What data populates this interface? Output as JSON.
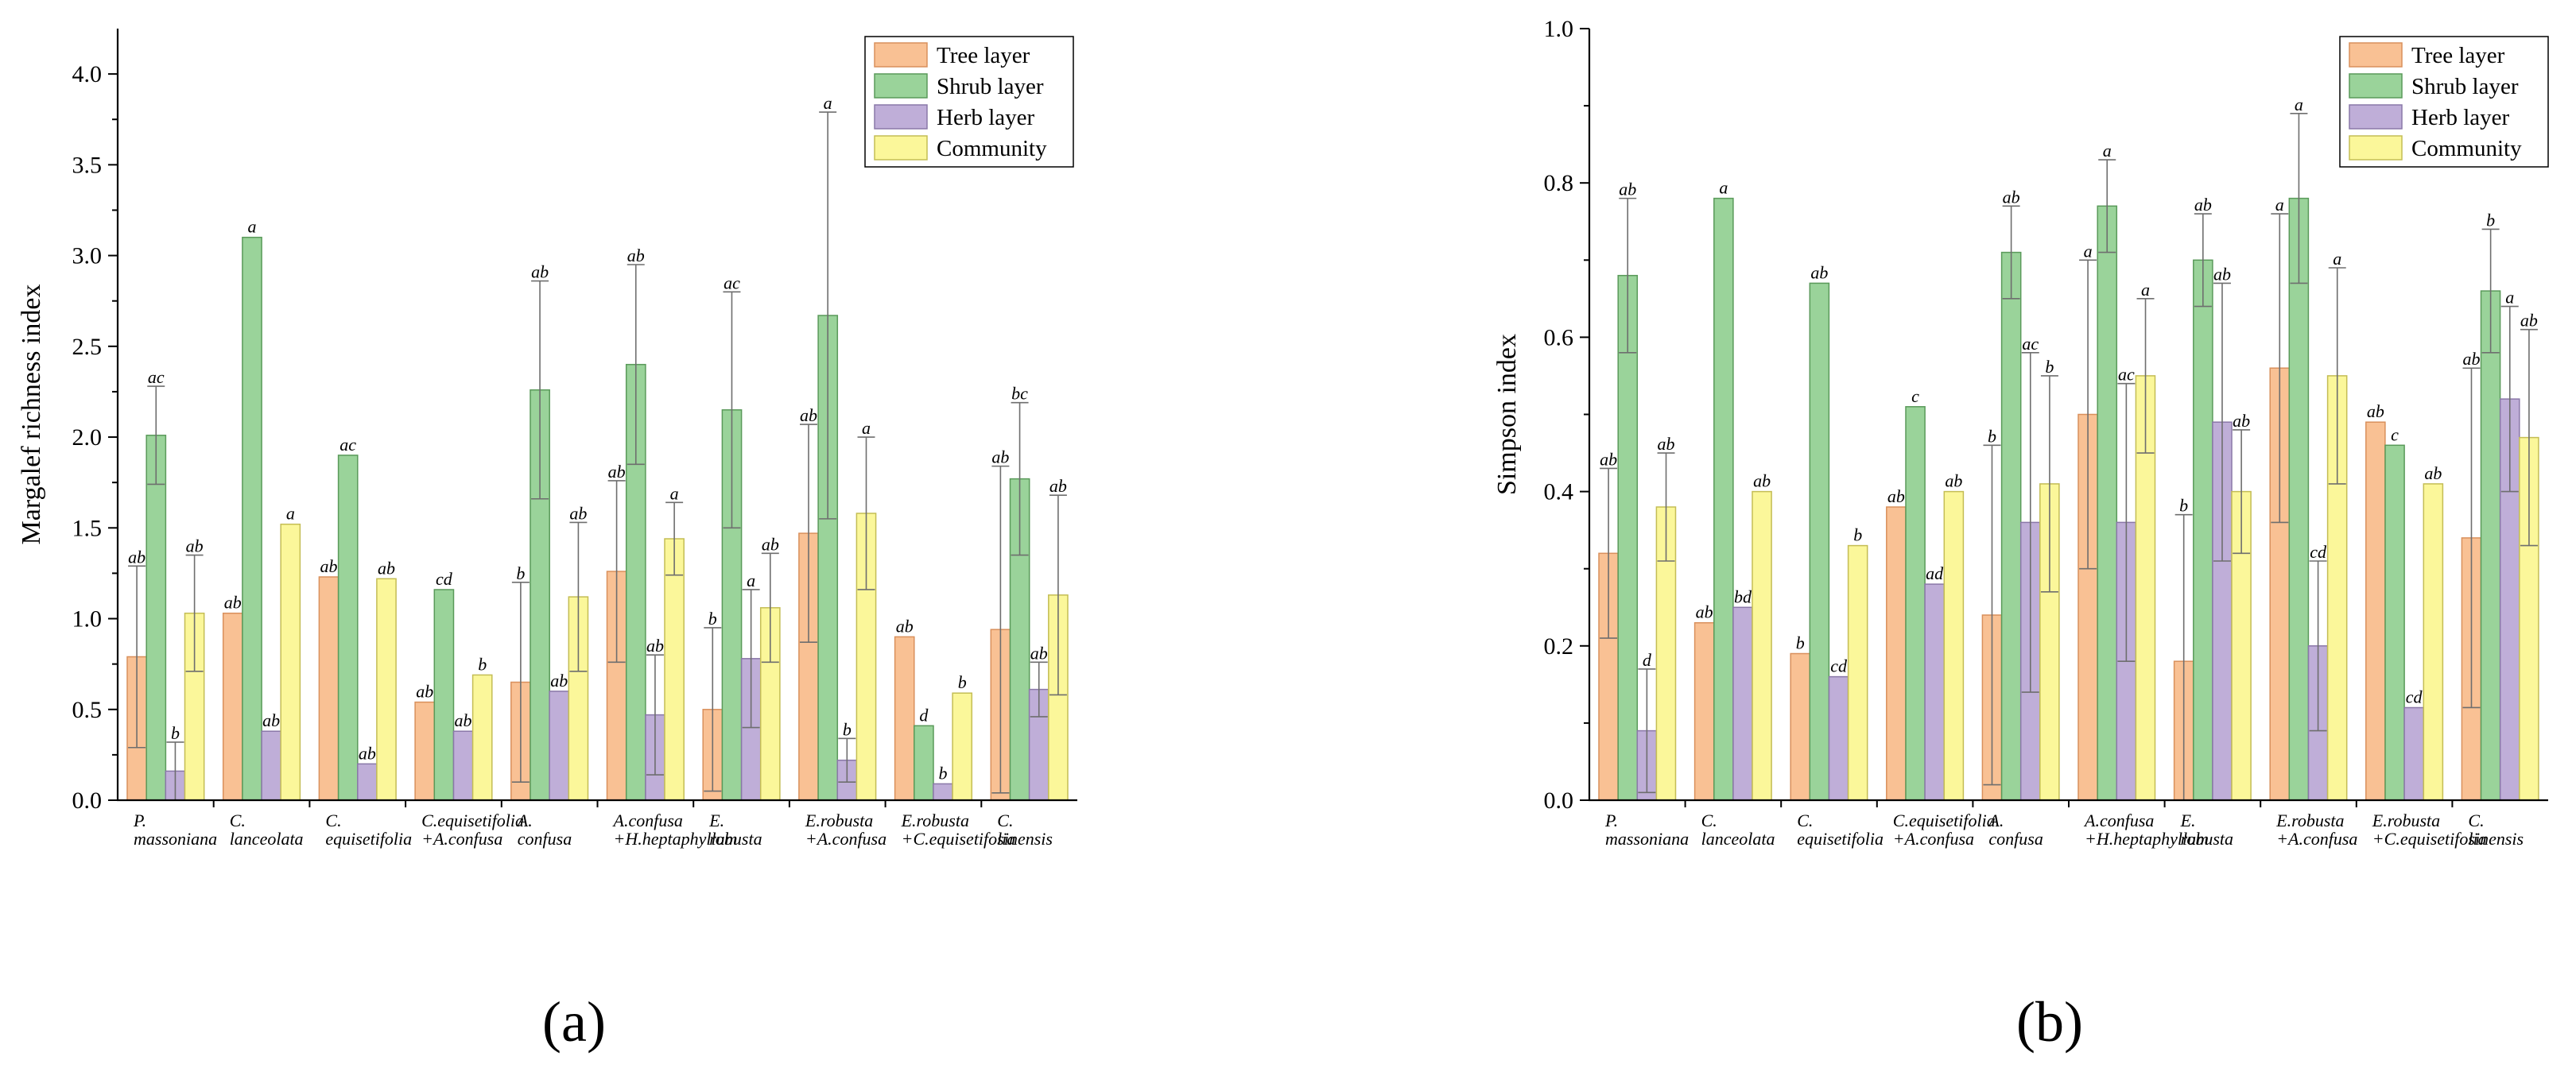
{
  "colors": {
    "tree": "#f9c194",
    "tree_stroke": "#d9905c",
    "shrub": "#9ad39a",
    "shrub_stroke": "#5a9a5a",
    "herb": "#bfaed8",
    "herb_stroke": "#8a78a8",
    "community": "#fbf79a",
    "community_stroke": "#c4bd55"
  },
  "legend": [
    "Tree layer",
    "Shrub layer",
    "Herb layer",
    "Community"
  ],
  "chart_data": [
    {
      "type": "bar",
      "panel_label": "(a)",
      "ylabel": "Margalef richness index",
      "xlabel": "",
      "ylim": [
        0,
        4.25
      ],
      "yticks": [
        "0.0",
        "0.5",
        "1.0",
        "1.5",
        "2.0",
        "2.5",
        "3.0",
        "3.5",
        "4.0"
      ],
      "categories": [
        [
          "P.",
          "massoniana"
        ],
        [
          "C.",
          "lanceolata"
        ],
        [
          "C.",
          "equisetifolia"
        ],
        [
          "C.equisetifolia",
          "+A.confusa"
        ],
        [
          "A.",
          "confusa"
        ],
        [
          "A.confusa",
          "+H.heptaphyllum"
        ],
        [
          "E.",
          "robusta"
        ],
        [
          "E.robusta",
          "+A.confusa"
        ],
        [
          "E.robusta",
          "+C.equisetifolia"
        ],
        [
          "C.",
          "sinensis"
        ]
      ],
      "series": [
        {
          "name": "Tree layer",
          "values": [
            0.79,
            1.03,
            1.23,
            0.54,
            0.65,
            1.26,
            0.5,
            1.47,
            0.9,
            0.94
          ],
          "errors": [
            0.5,
            0.0,
            0.0,
            0.0,
            0.55,
            0.5,
            0.45,
            0.6,
            0.0,
            0.9
          ],
          "labels": [
            "ab",
            "ab",
            "ab",
            "ab",
            "b",
            "ab",
            "b",
            "ab",
            "ab",
            "ab"
          ]
        },
        {
          "name": "Shrub layer",
          "values": [
            2.01,
            3.1,
            1.9,
            1.16,
            2.26,
            2.4,
            2.15,
            2.67,
            0.41,
            1.77
          ],
          "errors": [
            0.27,
            0.0,
            0.0,
            0.0,
            0.6,
            0.55,
            0.65,
            1.12,
            0.0,
            0.42
          ],
          "labels": [
            "ac",
            "a",
            "ac",
            "cd",
            "ab",
            "ab",
            "ac",
            "a",
            "d",
            "bc"
          ]
        },
        {
          "name": "Herb layer",
          "values": [
            0.16,
            0.38,
            0.2,
            0.38,
            0.6,
            0.47,
            0.78,
            0.22,
            0.09,
            0.61
          ],
          "errors": [
            0.16,
            0.0,
            0.0,
            0.0,
            0.0,
            0.33,
            0.38,
            0.12,
            0.0,
            0.15
          ],
          "labels": [
            "b",
            "ab",
            "ab",
            "ab",
            "ab",
            "ab",
            "a",
            "b",
            "b",
            "ab"
          ]
        },
        {
          "name": "Community",
          "values": [
            1.03,
            1.52,
            1.22,
            0.69,
            1.12,
            1.44,
            1.06,
            1.58,
            0.59,
            1.13
          ],
          "errors": [
            0.32,
            0.0,
            0.0,
            0.0,
            0.41,
            0.2,
            0.3,
            0.42,
            0.0,
            0.55
          ],
          "labels": [
            "ab",
            "a",
            "ab",
            "b",
            "ab",
            "a",
            "ab",
            "a",
            "b",
            "ab"
          ]
        }
      ]
    },
    {
      "type": "bar",
      "panel_label": "(b)",
      "ylabel": "Simpson index",
      "xlabel": "",
      "ylim": [
        0,
        1.0
      ],
      "yticks": [
        "0.0",
        "0.2",
        "0.4",
        "0.6",
        "0.8",
        "1.0"
      ],
      "categories": [
        [
          "P.",
          "massoniana"
        ],
        [
          "C.",
          "lanceolata"
        ],
        [
          "C.",
          "equisetifolia"
        ],
        [
          "C.equisetifolia",
          "+A.confusa"
        ],
        [
          "A.",
          "confusa"
        ],
        [
          "A.confusa",
          "+H.heptaphyllum"
        ],
        [
          "E.",
          "robusta"
        ],
        [
          "E.robusta",
          "+A.confusa"
        ],
        [
          "E.robusta",
          "+C.equisetifolia"
        ],
        [
          "C.",
          "sinensis"
        ]
      ],
      "series": [
        {
          "name": "Tree layer",
          "values": [
            0.32,
            0.23,
            0.19,
            0.38,
            0.24,
            0.5,
            0.18,
            0.56,
            0.49,
            0.34
          ],
          "errors": [
            0.11,
            0.0,
            0.0,
            0.0,
            0.22,
            0.2,
            0.19,
            0.2,
            0.0,
            0.22
          ],
          "labels": [
            "ab",
            "ab",
            "b",
            "ab",
            "b",
            "a",
            "b",
            "a",
            "ab",
            "ab"
          ]
        },
        {
          "name": "Shrub layer",
          "values": [
            0.68,
            0.78,
            0.67,
            0.51,
            0.71,
            0.77,
            0.7,
            0.78,
            0.46,
            0.66
          ],
          "errors": [
            0.1,
            0.0,
            0.0,
            0.0,
            0.06,
            0.06,
            0.06,
            0.11,
            0.0,
            0.08
          ],
          "labels": [
            "ab",
            "a",
            "ab",
            "c",
            "ab",
            "a",
            "ab",
            "a",
            "c",
            "b"
          ]
        },
        {
          "name": "Herb layer",
          "values": [
            0.09,
            0.25,
            0.16,
            0.28,
            0.36,
            0.36,
            0.49,
            0.2,
            0.12,
            0.52
          ],
          "errors": [
            0.08,
            0.0,
            0.0,
            0.0,
            0.22,
            0.18,
            0.18,
            0.11,
            0.0,
            0.12
          ],
          "labels": [
            "d",
            "bd",
            "cd",
            "ad",
            "ac",
            "ac",
            "ab",
            "cd",
            "cd",
            "a"
          ]
        },
        {
          "name": "Community",
          "values": [
            0.38,
            0.4,
            0.33,
            0.4,
            0.41,
            0.55,
            0.4,
            0.55,
            0.41,
            0.47
          ],
          "errors": [
            0.07,
            0.0,
            0.0,
            0.0,
            0.14,
            0.1,
            0.08,
            0.14,
            0.0,
            0.14
          ],
          "labels": [
            "ab",
            "ab",
            "b",
            "ab",
            "b",
            "a",
            "ab",
            "a",
            "ab",
            "ab"
          ]
        }
      ]
    }
  ]
}
